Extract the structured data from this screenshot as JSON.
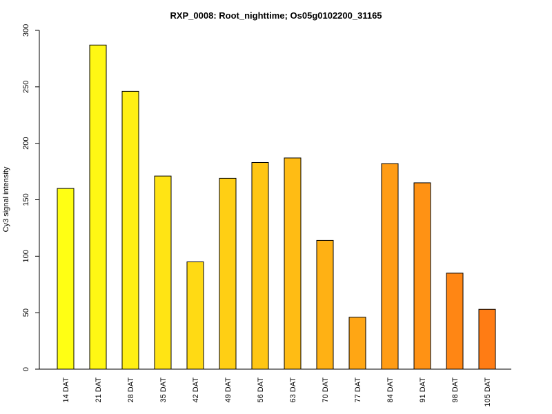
{
  "chart_data": {
    "type": "bar",
    "title": "RXP_0008: Root_nighttime; Os05g0102200_31165",
    "xlabel": "",
    "ylabel": "Cy3 signal intensity",
    "categories": [
      "14 DAT",
      "21 DAT",
      "28 DAT",
      "35 DAT",
      "42 DAT",
      "49 DAT",
      "56 DAT",
      "63 DAT",
      "70 DAT",
      "77 DAT",
      "84 DAT",
      "91 DAT",
      "98 DAT",
      "105 DAT"
    ],
    "values": [
      160,
      287,
      246,
      171,
      95,
      169,
      183,
      187,
      114,
      46,
      182,
      165,
      85,
      53
    ],
    "ylim": [
      0,
      300
    ],
    "yticks": [
      0,
      50,
      100,
      150,
      200,
      250,
      300
    ],
    "grid": false,
    "colors": [
      "#FFFF14",
      "#FFF714",
      "#FFEF14",
      "#FFE414",
      "#FFDA14",
      "#FFCF14",
      "#FFC614",
      "#FFBC14",
      "#FFB114",
      "#FFA614",
      "#FF9C14",
      "#FF9214",
      "#FF8614",
      "#FF7C14"
    ]
  }
}
